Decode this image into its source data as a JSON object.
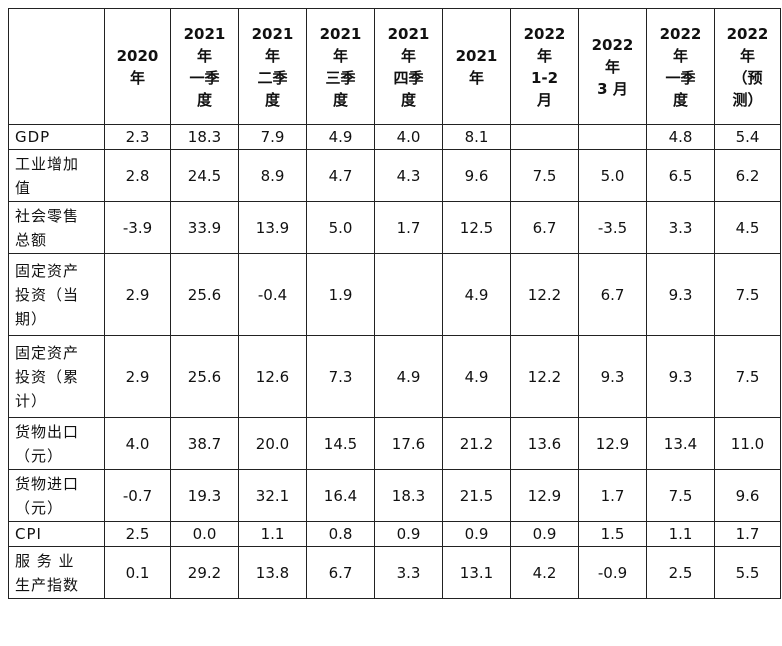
{
  "table": {
    "corner": "",
    "headers": [
      "2020\n年",
      "2021\n年\n一季\n度",
      "2021\n年\n二季\n度",
      "2021\n年\n三季\n度",
      "2021\n年\n四季\n度",
      "2021\n年",
      "2022\n年\n1-2\n月",
      "2022\n年\n3 月",
      "2022\n年\n一季\n度",
      "2022\n年\n（预\n测）"
    ],
    "rows": [
      {
        "label": "GDP",
        "values": [
          "2.3",
          "18.3",
          "7.9",
          "4.9",
          "4.0",
          "8.1",
          "",
          "",
          "4.8",
          "5.4"
        ]
      },
      {
        "label": "工业增加\n值",
        "values": [
          "2.8",
          "24.5",
          "8.9",
          "4.7",
          "4.3",
          "9.6",
          "7.5",
          "5.0",
          "6.5",
          "6.2"
        ]
      },
      {
        "label": "社会零售\n总额",
        "values": [
          "-3.9",
          "33.9",
          "13.9",
          "5.0",
          "1.7",
          "12.5",
          "6.7",
          "-3.5",
          "3.3",
          "4.5"
        ]
      },
      {
        "label": "固定资产\n投资（当\n期）",
        "values": [
          "2.9",
          "25.6",
          "-0.4",
          "1.9",
          "",
          "4.9",
          "12.2",
          "6.7",
          "9.3",
          "7.5"
        ]
      },
      {
        "label": "固定资产\n投资（累\n计）",
        "values": [
          "2.9",
          "25.6",
          "12.6",
          "7.3",
          "4.9",
          "4.9",
          "12.2",
          "9.3",
          "9.3",
          "7.5"
        ]
      },
      {
        "label": "货物出口\n（元）",
        "values": [
          "4.0",
          "38.7",
          "20.0",
          "14.5",
          "17.6",
          "21.2",
          "13.6",
          "12.9",
          "13.4",
          "11.0"
        ]
      },
      {
        "label": "货物进口\n（元）",
        "values": [
          "-0.7",
          "19.3",
          "32.1",
          "16.4",
          "18.3",
          "21.5",
          "12.9",
          "1.7",
          "7.5",
          "9.6"
        ]
      },
      {
        "label": "CPI",
        "values": [
          "2.5",
          "0.0",
          "1.1",
          "0.8",
          "0.9",
          "0.9",
          "0.9",
          "1.5",
          "1.1",
          "1.7"
        ]
      },
      {
        "label": "服 务 业\n生产指数",
        "values": [
          "0.1",
          "29.2",
          "13.8",
          "6.7",
          "3.3",
          "13.1",
          "4.2",
          "-0.9",
          "2.5",
          "5.5"
        ]
      }
    ]
  }
}
